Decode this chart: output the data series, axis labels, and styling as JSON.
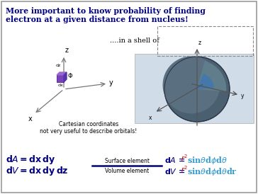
{
  "title_line1": "More important to know probability of finding",
  "title_line2": "electron at a given distance from nucleus!",
  "title_color": "#00008B",
  "bg_color": "#FFFFFF",
  "border_color": "#999999",
  "shell_text": "....in a shell of",
  "cartesian_text1": "Cartesian coordinates",
  "cartesian_text2": "not very useful to describe orbitals!",
  "surface_label": "Surface element",
  "volume_label": "Volume element",
  "red_color": "#CC0000",
  "cyan_color": "#3399CC",
  "dark_blue": "#000080",
  "purple_cube": "#6633AA",
  "sphere_dark": "#4A5F70",
  "sphere_mid": "#5A7080",
  "sphere_cut": "#5588AA",
  "sphere_inner": "#4477AA",
  "sphere_bg": "#D0DDE8",
  "axis_color": "#555555"
}
